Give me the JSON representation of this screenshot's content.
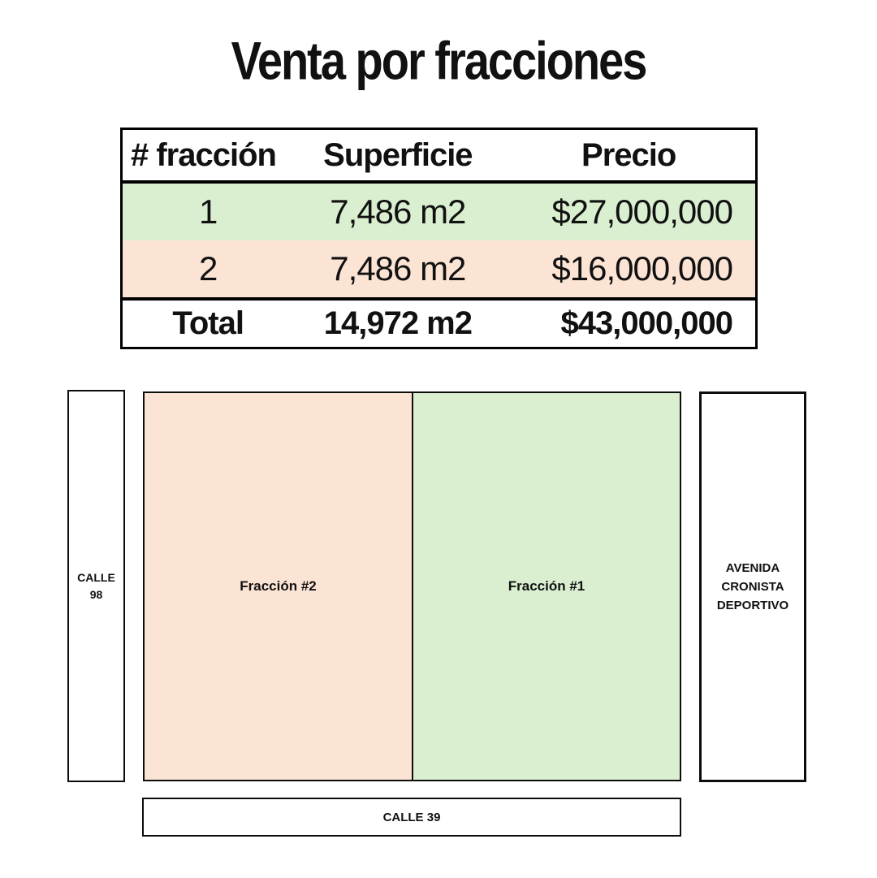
{
  "title": "Venta por fracciones",
  "table": {
    "headers": {
      "fraction": "# fracción",
      "area": "Superficie",
      "price": "Precio"
    },
    "rows": [
      {
        "fraction": "1",
        "area": "7,486 m2",
        "price": "$27,000,000"
      },
      {
        "fraction": "2",
        "area": "7,486 m2",
        "price": "$16,000,000"
      }
    ],
    "total": {
      "label": "Total",
      "area": "14,972 m2",
      "price": "$43,000,000"
    }
  },
  "map": {
    "calle98": {
      "lines": [
        "CALLE",
        "98"
      ]
    },
    "fraccion2": {
      "label": "Fracción #2"
    },
    "fraccion1": {
      "label": "Fracción #1"
    },
    "avenida": {
      "lines": [
        "AVENIDA",
        "CRONISTA",
        "DEPORTIVO"
      ]
    },
    "calle39": {
      "label": "CALLE 39"
    }
  },
  "colors": {
    "parcel_green": "#d9efd0",
    "parcel_pink": "#fce4d4",
    "border": "#000000"
  }
}
